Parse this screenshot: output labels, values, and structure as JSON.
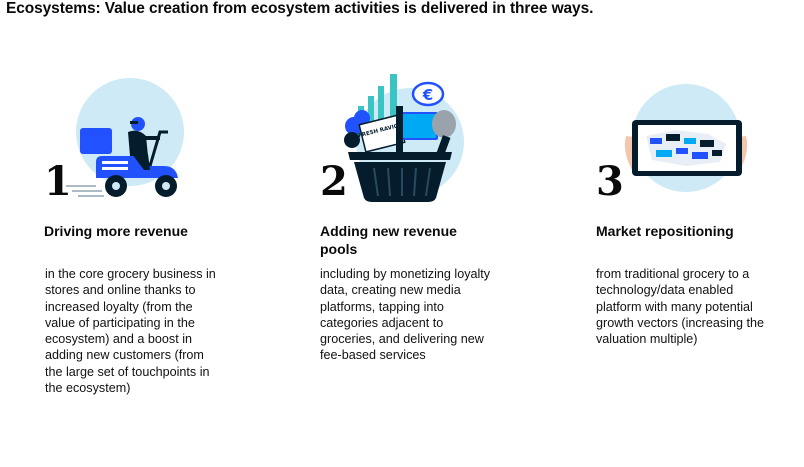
{
  "title": "Ecosystems: Value creation from ecosystem activities is delivered in three ways.",
  "items": [
    {
      "number": "1",
      "heading": "Driving more revenue",
      "description": "in the core grocery business in stores and online thanks to increased loyalty (from the value of participating in the ecosystem) and a boost in adding new customers (from the large set of touchpoints in the ecosystem)",
      "icon": "delivery-scooter-icon"
    },
    {
      "number": "2",
      "heading": "Adding new revenue pools",
      "description": "including by monetizing loyalty data, creating new media platforms, tapping into categories adjacent to groceries, and delivering new fee-based services",
      "icon": "grocery-basket-icon",
      "illustration_labels": {
        "currency": "€",
        "package": "FRESH RAVIOLI"
      }
    },
    {
      "number": "3",
      "heading": "Market repositioning",
      "description": "from traditional grocery to a technology/data enabled platform with many potential growth vectors (increasing the valuation multiple)",
      "icon": "tablet-data-icon"
    }
  ],
  "colors": {
    "circle": "#cdeaf6",
    "blue": "#2251ff",
    "navy": "#051c2c",
    "teal": "#00a9f4",
    "cyan": "#3bc4c4",
    "text": "#0a0a0a"
  }
}
